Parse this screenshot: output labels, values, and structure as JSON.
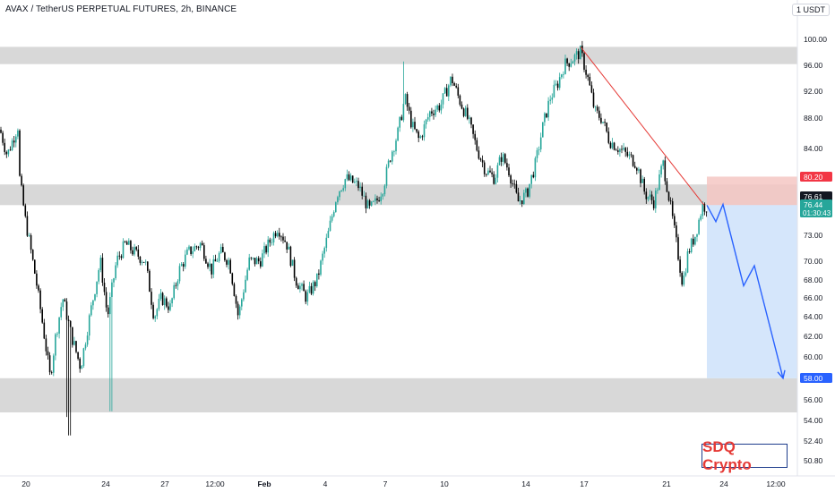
{
  "header": {
    "title": "AVAX / TetherUS PERPETUAL FUTURES, 2h, BINANCE",
    "currency": "1 USDT"
  },
  "watermark": "SDQ Crypto",
  "colors": {
    "bull": "#26a69a",
    "bear": "#000000",
    "zone": "#d6d6d6",
    "stop_zone": "#f4c7c3",
    "target_zone": "#d0e3fb",
    "trendline": "#e53935",
    "projection": "#2962ff"
  },
  "chart_data": {
    "type": "candlestick",
    "y_scale": "log",
    "ylim": [
      49.5,
      102.5
    ],
    "y_ticks": [
      "100.00",
      "96.00",
      "92.00",
      "88.00",
      "84.00",
      "80.20",
      "76.61",
      "76.44",
      "73.00",
      "70.00",
      "68.00",
      "66.00",
      "64.00",
      "62.00",
      "60.00",
      "58.00",
      "56.00",
      "54.00",
      "52.40",
      "50.80"
    ],
    "x_ticks": [
      "20",
      "24",
      "27",
      "12:00",
      "Feb",
      "4",
      "7",
      "10",
      "14",
      "17",
      "21",
      "24",
      "12:00"
    ],
    "price_labels": [
      {
        "text": "80.20",
        "color": "#f23645",
        "value": 80.2
      },
      {
        "text": "76.61",
        "color": "#131722",
        "value": 76.61
      },
      {
        "text": "76.44",
        "sub": "01:30:43",
        "color": "#26a69a",
        "value": 76.44
      },
      {
        "text": "58.00",
        "color": "#2962ff",
        "value": 58.0
      }
    ],
    "zones": [
      {
        "name": "resistance-zone",
        "low": 96.1,
        "high": 98.8
      },
      {
        "name": "mid-zone",
        "low": 76.61,
        "high": 79.2
      },
      {
        "name": "support-zone",
        "low": 54.9,
        "high": 58.0
      }
    ],
    "risk_box": {
      "stop": 80.2,
      "entry": 76.61,
      "target": 58.0
    },
    "trendline": [
      [
        98.8
      ],
      [
        76.6
      ]
    ],
    "projection": [
      76.6,
      74.6,
      76.7,
      67.3,
      69.5,
      58.0
    ],
    "anchors": [
      [
        0,
        86.5
      ],
      [
        8,
        83
      ],
      [
        20,
        87
      ],
      [
        22,
        80
      ],
      [
        28,
        75
      ],
      [
        40,
        68
      ],
      [
        48,
        63
      ],
      [
        56,
        58
      ],
      [
        62,
        62
      ],
      [
        70,
        66
      ],
      [
        80,
        62
      ],
      [
        90,
        59
      ],
      [
        96,
        62
      ],
      [
        104,
        66
      ],
      [
        112,
        70
      ],
      [
        120,
        64
      ],
      [
        130,
        70
      ],
      [
        140,
        72
      ],
      [
        150,
        71
      ],
      [
        162,
        70
      ],
      [
        172,
        64
      ],
      [
        180,
        66
      ],
      [
        190,
        65
      ],
      [
        200,
        69
      ],
      [
        210,
        71
      ],
      [
        224,
        72
      ],
      [
        236,
        69
      ],
      [
        246,
        71
      ],
      [
        256,
        70
      ],
      [
        266,
        64
      ],
      [
        278,
        70
      ],
      [
        290,
        70
      ],
      [
        300,
        72
      ],
      [
        310,
        74
      ],
      [
        320,
        72
      ],
      [
        330,
        68
      ],
      [
        342,
        66
      ],
      [
        354,
        68
      ],
      [
        366,
        73
      ],
      [
        376,
        78
      ],
      [
        386,
        80
      ],
      [
        400,
        79
      ],
      [
        412,
        76
      ],
      [
        420,
        77
      ],
      [
        428,
        79
      ],
      [
        436,
        83
      ],
      [
        444,
        86
      ],
      [
        452,
        91
      ],
      [
        460,
        87
      ],
      [
        468,
        85
      ],
      [
        480,
        89
      ],
      [
        492,
        90
      ],
      [
        504,
        94
      ],
      [
        512,
        91
      ],
      [
        522,
        88
      ],
      [
        532,
        84
      ],
      [
        542,
        81
      ],
      [
        552,
        80
      ],
      [
        560,
        83
      ],
      [
        568,
        81
      ],
      [
        578,
        77
      ],
      [
        588,
        78
      ],
      [
        598,
        82
      ],
      [
        606,
        87
      ],
      [
        614,
        91
      ],
      [
        622,
        93
      ],
      [
        630,
        96
      ],
      [
        640,
        97
      ],
      [
        648,
        98
      ],
      [
        656,
        94
      ],
      [
        664,
        89
      ],
      [
        672,
        88
      ],
      [
        680,
        85
      ],
      [
        690,
        84
      ],
      [
        700,
        83
      ],
      [
        710,
        82
      ],
      [
        720,
        78
      ],
      [
        730,
        77
      ],
      [
        740,
        82
      ],
      [
        746,
        78
      ],
      [
        752,
        74
      ],
      [
        758,
        70
      ],
      [
        762,
        67.5
      ],
      [
        768,
        71
      ],
      [
        776,
        73
      ],
      [
        784,
        76.5
      ],
      [
        790,
        76.4
      ]
    ]
  }
}
